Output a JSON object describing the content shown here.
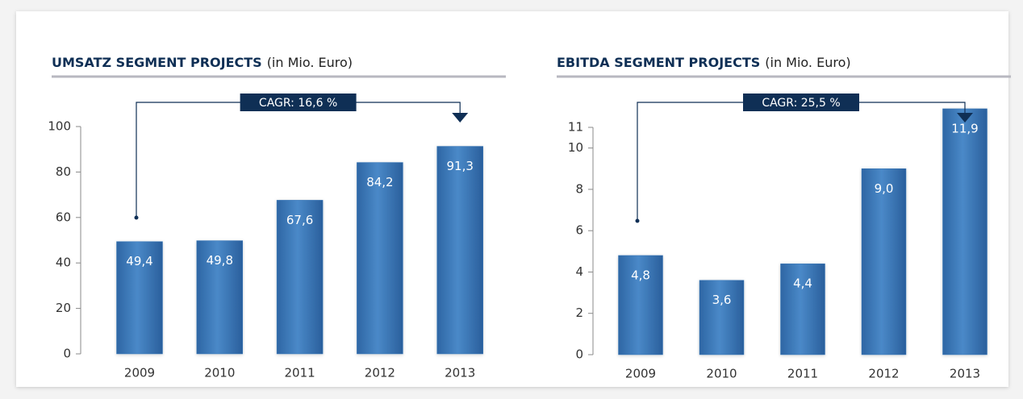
{
  "chart_data": [
    {
      "type": "bar",
      "title": "UMSATZ SEGMENT PROJECTS",
      "unit": "(in Mio. Euro)",
      "annotation": "CAGR: 16,6 %",
      "categories": [
        "2009",
        "2010",
        "2011",
        "2012",
        "2013"
      ],
      "values": [
        49.4,
        49.8,
        67.6,
        84.2,
        91.3
      ],
      "value_labels": [
        "49,4",
        "49,8",
        "67,6",
        "84,2",
        "91,3"
      ],
      "color": "#3a78b8",
      "ylim": [
        0,
        100
      ],
      "yticks": [
        0,
        20,
        40,
        60,
        80,
        100
      ]
    },
    {
      "type": "bar",
      "title": "EBITDA SEGMENT PROJECTS",
      "unit": "(in Mio. Euro)",
      "annotation": "CAGR: 25,5 %",
      "categories": [
        "2009",
        "2010",
        "2011",
        "2012",
        "2013"
      ],
      "values": [
        4.8,
        3.6,
        4.4,
        9.0,
        11.9
      ],
      "value_labels": [
        "4,8",
        "3,6",
        "4,4",
        "9,0",
        "11,9"
      ],
      "color": "#3a78b8",
      "ylim": [
        0,
        12
      ],
      "yticks": [
        0,
        2,
        4,
        6,
        8,
        10,
        11
      ]
    }
  ]
}
